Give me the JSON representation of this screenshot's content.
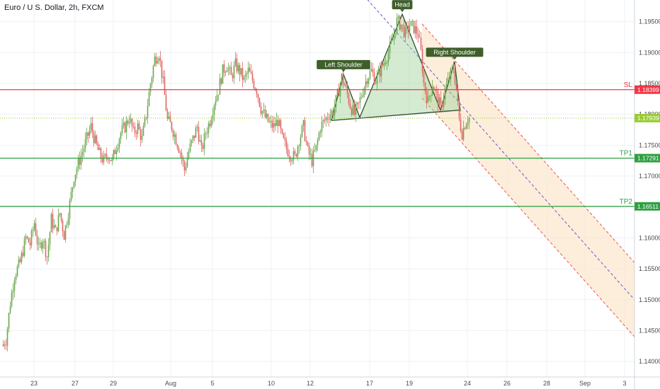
{
  "header": {
    "title": "Euro / U.S. Dollar, 2h, FXCM"
  },
  "colors": {
    "up": "#6aa84f",
    "down": "#e06666",
    "sl": "#f23645",
    "tp": "#2ea043",
    "current": "#9acd32",
    "channel_mid": "#6a5acd",
    "channel_edge": "#ef5350",
    "channel_fill": "#fbe8cf",
    "pattern_fill": "#9fd19a",
    "pattern_line": "#2f4f2f",
    "label_bg": "#3e5f2a",
    "grid": "#eef0f3",
    "axis_text": "#4a4a4a"
  },
  "chart_data": {
    "type": "candlestick",
    "title": "Euro / U.S. Dollar, 2h, FXCM",
    "ylim": [
      1.1375,
      1.1985
    ],
    "y_ticks": [
      "1.14000",
      "1.14500",
      "1.15000",
      "1.15500",
      "1.16000",
      "1.16500",
      "1.17000",
      "1.17500",
      "1.18000",
      "1.18500",
      "1.19000",
      "1.19500"
    ],
    "x_ticks": [
      {
        "label": "23",
        "slot": 48
      },
      {
        "label": "27",
        "slot": 106
      },
      {
        "label": "29",
        "slot": 160
      },
      {
        "label": "Aug",
        "slot": 241
      },
      {
        "label": "5",
        "slot": 300
      },
      {
        "label": "10",
        "slot": 383
      },
      {
        "label": "12",
        "slot": 438
      },
      {
        "label": "17",
        "slot": 522
      },
      {
        "label": "19",
        "slot": 578
      },
      {
        "label": "24",
        "slot": 660
      },
      {
        "label": "26",
        "slot": 716
      },
      {
        "label": "28",
        "slot": 772
      },
      {
        "label": "Sep",
        "slot": 826
      },
      {
        "label": "3",
        "slot": 882
      }
    ],
    "price_path": [
      [
        4,
        1.1425
      ],
      [
        10,
        1.1435
      ],
      [
        16,
        1.1495
      ],
      [
        22,
        1.154
      ],
      [
        30,
        1.156
      ],
      [
        38,
        1.16
      ],
      [
        44,
        1.159
      ],
      [
        50,
        1.1625
      ],
      [
        56,
        1.158
      ],
      [
        62,
        1.16
      ],
      [
        68,
        1.157
      ],
      [
        74,
        1.163
      ],
      [
        80,
        1.161
      ],
      [
        86,
        1.164
      ],
      [
        92,
        1.1605
      ],
      [
        100,
        1.1655
      ],
      [
        106,
        1.17
      ],
      [
        112,
        1.172
      ],
      [
        118,
        1.174
      ],
      [
        124,
        1.176
      ],
      [
        130,
        1.178
      ],
      [
        136,
        1.1755
      ],
      [
        142,
        1.1735
      ],
      [
        148,
        1.1725
      ],
      [
        154,
        1.1735
      ],
      [
        160,
        1.1725
      ],
      [
        166,
        1.175
      ],
      [
        172,
        1.177
      ],
      [
        178,
        1.178
      ],
      [
        184,
        1.1795
      ],
      [
        190,
        1.177
      ],
      [
        196,
        1.178
      ],
      [
        202,
        1.176
      ],
      [
        208,
        1.18
      ],
      [
        214,
        1.185
      ],
      [
        220,
        1.189
      ],
      [
        226,
        1.19
      ],
      [
        232,
        1.185
      ],
      [
        238,
        1.179
      ],
      [
        244,
        1.178
      ],
      [
        250,
        1.176
      ],
      [
        256,
        1.174
      ],
      [
        262,
        1.171
      ],
      [
        268,
        1.174
      ],
      [
        274,
        1.176
      ],
      [
        280,
        1.178
      ],
      [
        286,
        1.174
      ],
      [
        292,
        1.177
      ],
      [
        298,
        1.179
      ],
      [
        304,
        1.182
      ],
      [
        310,
        1.184
      ],
      [
        316,
        1.187
      ],
      [
        322,
        1.188
      ],
      [
        328,
        1.186
      ],
      [
        334,
        1.188
      ],
      [
        340,
        1.187
      ],
      [
        346,
        1.1855
      ],
      [
        352,
        1.187
      ],
      [
        358,
        1.1855
      ],
      [
        364,
        1.184
      ],
      [
        370,
        1.181
      ],
      [
        376,
        1.1795
      ],
      [
        382,
        1.1785
      ],
      [
        388,
        1.178
      ],
      [
        394,
        1.179
      ],
      [
        400,
        1.176
      ],
      [
        406,
        1.1745
      ],
      [
        412,
        1.1735
      ],
      [
        418,
        1.173
      ],
      [
        424,
        1.176
      ],
      [
        430,
        1.178
      ],
      [
        436,
        1.174
      ],
      [
        442,
        1.1725
      ],
      [
        448,
        1.1745
      ],
      [
        454,
        1.178
      ],
      [
        460,
        1.179
      ],
      [
        466,
        1.18
      ],
      [
        472,
        1.1805
      ],
      [
        478,
        1.183
      ],
      [
        484,
        1.186
      ],
      [
        490,
        1.184
      ],
      [
        496,
        1.1815
      ],
      [
        502,
        1.18
      ],
      [
        508,
        1.1815
      ],
      [
        514,
        1.184
      ],
      [
        520,
        1.186
      ],
      [
        526,
        1.187
      ],
      [
        532,
        1.1855
      ],
      [
        538,
        1.187
      ],
      [
        544,
        1.1885
      ],
      [
        550,
        1.19
      ],
      [
        556,
        1.192
      ],
      [
        562,
        1.195
      ],
      [
        568,
        1.1945
      ],
      [
        574,
        1.193
      ],
      [
        580,
        1.1945
      ],
      [
        586,
        1.194
      ],
      [
        592,
        1.193
      ],
      [
        596,
        1.19
      ],
      [
        600,
        1.185
      ],
      [
        606,
        1.182
      ],
      [
        612,
        1.185
      ],
      [
        618,
        1.183
      ],
      [
        624,
        1.181
      ],
      [
        630,
        1.184
      ],
      [
        636,
        1.186
      ],
      [
        642,
        1.1875
      ],
      [
        646,
        1.184
      ],
      [
        650,
        1.179
      ],
      [
        654,
        1.177
      ],
      [
        658,
        1.1785
      ],
      [
        662,
        1.1794
      ]
    ],
    "levels": [
      {
        "name": "SL",
        "price": 1.18399,
        "label": "1.18399",
        "color": "#f23645"
      },
      {
        "name": "",
        "price": 1.17939,
        "label": "1.17939",
        "color": "#9acd32"
      },
      {
        "name": "TP1",
        "price": 1.17291,
        "label": "1.17291",
        "color": "#2ea043"
      },
      {
        "name": "TP2",
        "price": 1.16511,
        "label": "1.16511",
        "color": "#2ea043"
      }
    ],
    "head_shoulders": {
      "points": [
        {
          "slot": 468,
          "price": 1.179
        },
        {
          "slot": 485,
          "price": 1.1865
        },
        {
          "slot": 508,
          "price": 1.1795
        },
        {
          "slot": 568,
          "price": 1.1962
        },
        {
          "slot": 622,
          "price": 1.1807
        },
        {
          "slot": 642,
          "price": 1.1885
        },
        {
          "slot": 650,
          "price": 1.1805
        }
      ],
      "neckline": [
        {
          "slot": 468,
          "price": 1.179
        },
        {
          "slot": 650,
          "price": 1.1807
        }
      ],
      "labels": [
        {
          "text": "Left Shoulder",
          "slot": 485,
          "price": 1.1865
        },
        {
          "text": "Head",
          "slot": 568,
          "price": 1.1962
        },
        {
          "text": "Right Shoulder",
          "slot": 642,
          "price": 1.1885
        }
      ]
    },
    "channel": {
      "mid_start": {
        "slot": 500,
        "price": 1.201
      },
      "mid_end": {
        "slot": 896,
        "price": 1.15
      },
      "upper_offset": 0.006,
      "lower_offset": -0.006,
      "fill_start_slot": 596
    }
  }
}
